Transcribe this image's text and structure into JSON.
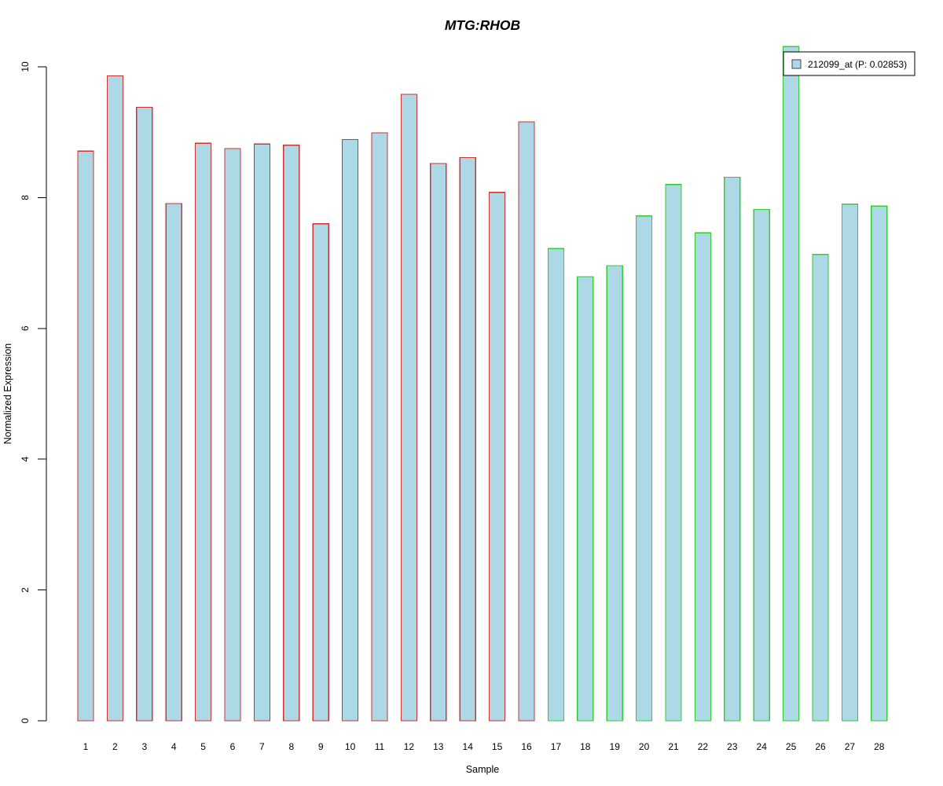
{
  "figure": {
    "background": "#FFFFFF",
    "title_color": "#0000CD",
    "axis_color": "#000000",
    "text_color": "#000000"
  },
  "chart_data": {
    "type": "bar",
    "title": "MTG:RHOB",
    "xlabel": "Sample",
    "ylabel": "Normalized Expression",
    "ylim": [
      0,
      10.4
    ],
    "yticks": [
      0,
      2,
      4,
      6,
      8,
      10
    ],
    "grid": false,
    "legend_position": "top-right",
    "legend": [
      {
        "label": "212099_at (P: 0.02853)",
        "swatch_fill": "#ADD8E6",
        "swatch_border": "#444444"
      }
    ],
    "bar_fill": "#ADD8E6",
    "categories": [
      "1",
      "2",
      "3",
      "4",
      "5",
      "6",
      "7",
      "8",
      "9",
      "10",
      "11",
      "12",
      "13",
      "14",
      "15",
      "16",
      "17",
      "18",
      "19",
      "20",
      "21",
      "22",
      "23",
      "24",
      "25",
      "26",
      "27",
      "28"
    ],
    "values": [
      8.71,
      9.86,
      9.38,
      7.91,
      8.83,
      8.75,
      8.82,
      8.8,
      7.6,
      8.89,
      8.99,
      9.58,
      8.52,
      8.61,
      8.08,
      9.16,
      7.22,
      6.79,
      6.96,
      7.72,
      8.2,
      7.46,
      8.31,
      7.82,
      10.31,
      7.13,
      7.9,
      7.87
    ],
    "groups": [
      {
        "name": "group-1-red-border",
        "from": 1,
        "to": 16,
        "border_color": "#CC3333"
      },
      {
        "name": "group-2-green-border",
        "from": 17,
        "to": 28,
        "border_color": "#33CC33"
      }
    ]
  }
}
